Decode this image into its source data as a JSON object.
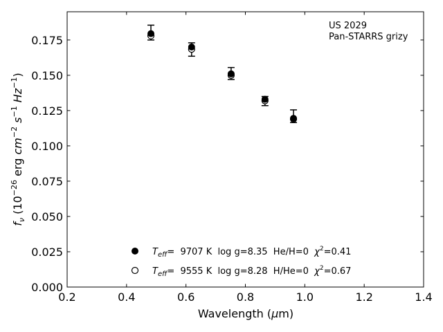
{
  "chart_data": {
    "type": "scatter",
    "title": "",
    "xlabel": {
      "pre": "Wavelength (",
      "mu": "μ",
      "post": "m)"
    },
    "ylabel": {
      "f": "f",
      "fsub": "ν",
      "open": " (10",
      "exp1": "−26",
      "erg": " erg ",
      "cm": "cm",
      "exp2": "−2",
      "s": " s",
      "exp3": "−1",
      "hz": " Hz",
      "exp4": "−1",
      "close": ")"
    },
    "xlim": [
      0.2,
      1.4
    ],
    "ylim": [
      0.0,
      0.195
    ],
    "xticks": [
      "0.2",
      "0.4",
      "0.6",
      "0.8",
      "1.0",
      "1.2",
      "1.4"
    ],
    "yticks": [
      "0.000",
      "0.025",
      "0.050",
      "0.075",
      "0.100",
      "0.125",
      "0.150",
      "0.175"
    ],
    "annotations": [
      "US 2029",
      "Pan-STARRS grizy"
    ],
    "series": [
      {
        "marker": "filled",
        "x": [
          0.482,
          0.619,
          0.752,
          0.866,
          0.962
        ],
        "y": [
          0.1795,
          0.17,
          0.151,
          0.133,
          0.1195
        ],
        "yerr_low": [
          0.0045,
          0.0065,
          0.004,
          0.0045,
          0.003
        ],
        "yerr_high": [
          0.006,
          0.003,
          0.0045,
          0.002,
          0.006
        ]
      },
      {
        "marker": "open",
        "x": [
          0.482,
          0.619,
          0.752,
          0.866,
          0.962
        ],
        "y": [
          0.178,
          0.1685,
          0.15,
          0.132,
          0.119
        ]
      }
    ],
    "legend": [
      {
        "marker": "filled",
        "teff_label": "T",
        "teff_sub": "eff",
        "text": "=  9707 K  log g=8.35  He/H=0  ",
        "chi": "χ",
        "chi_sup": "2",
        "chi_val": "=0.41"
      },
      {
        "marker": "open",
        "teff_label": "T",
        "teff_sub": "eff",
        "text": "=  9555 K  log g=8.28  H/He=0  ",
        "chi": "χ",
        "chi_sup": "2",
        "chi_val": "=0.67"
      }
    ],
    "legend_placement": "lower-center",
    "grid": false
  }
}
